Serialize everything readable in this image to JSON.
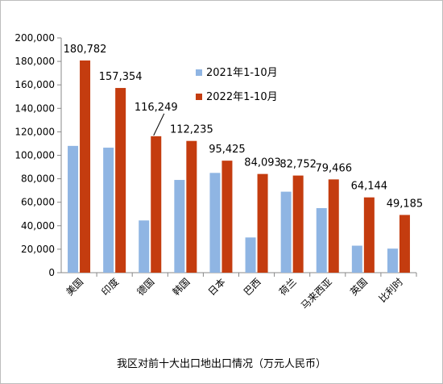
{
  "chart_data": {
    "type": "bar",
    "title": "我区对前十大出口地出口情况（万元人民币）",
    "categories": [
      "美国",
      "印度",
      "德国",
      "韩国",
      "日本",
      "巴西",
      "荷兰",
      "马来西亚",
      "英国",
      "比利时"
    ],
    "series": [
      {
        "name": "2021年1-10月",
        "color": "#8fb5e3",
        "values": [
          108000,
          106500,
          44500,
          79000,
          85000,
          30000,
          69000,
          55000,
          23000,
          20500
        ]
      },
      {
        "name": "2022年1-10月",
        "color": "#c43c0f",
        "values": [
          180782,
          157354,
          116249,
          112235,
          95425,
          84093,
          82752,
          79466,
          64144,
          49185
        ]
      }
    ],
    "data_labels": [
      "180,782",
      "157,354",
      "116,249",
      "112,235",
      "95,425",
      "84,093",
      "82,752",
      "79,466",
      "64,144",
      "49,185"
    ],
    "ylim": [
      0,
      200000
    ],
    "y_ticks": [
      "0",
      "20,000",
      "40,000",
      "60,000",
      "80,000",
      "100,000",
      "120,000",
      "140,000",
      "160,000",
      "180,000",
      "200,000"
    ],
    "legend_position": "top-center",
    "grid": false,
    "xlabel": "",
    "ylabel": ""
  }
}
